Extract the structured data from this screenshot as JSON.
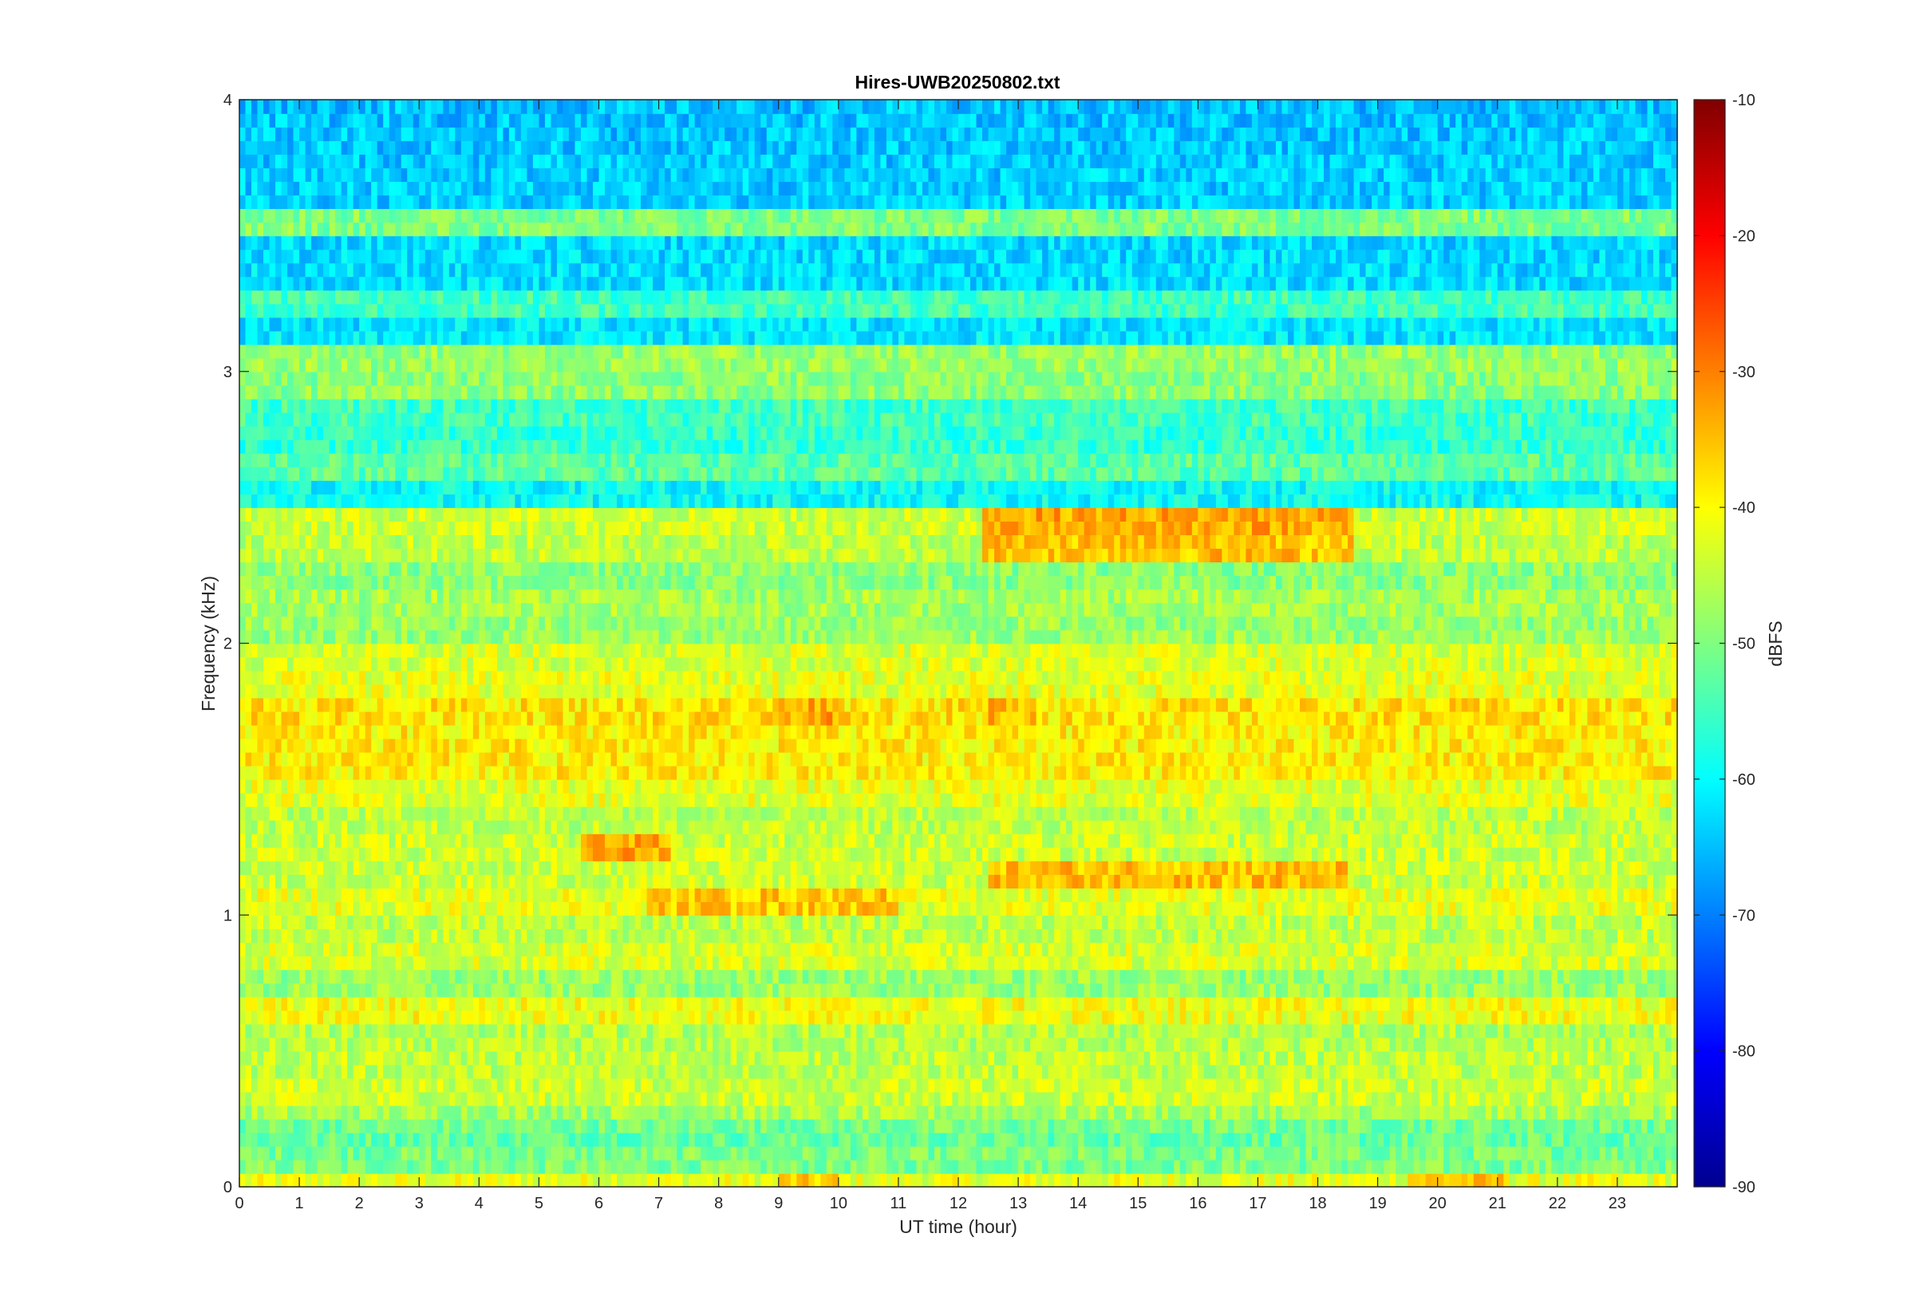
{
  "chart_data": {
    "type": "heatmap",
    "title": "Hires-UWB20250802.txt",
    "xlabel": "UT time (hour)",
    "ylabel": "Frequency (kHz)",
    "xlim": [
      0,
      24
    ],
    "ylim": [
      0,
      4
    ],
    "x_ticks": [
      "0",
      "1",
      "2",
      "3",
      "4",
      "5",
      "6",
      "7",
      "8",
      "9",
      "10",
      "11",
      "12",
      "13",
      "14",
      "15",
      "16",
      "17",
      "18",
      "19",
      "20",
      "21",
      "22",
      "23"
    ],
    "y_ticks": [
      "0",
      "1",
      "2",
      "3",
      "4"
    ],
    "colorbar": {
      "label": "dBFS",
      "limits": [
        -90,
        -10
      ],
      "ticks": [
        "-10",
        "-20",
        "-30",
        "-40",
        "-50",
        "-60",
        "-70",
        "-80",
        "-90"
      ],
      "colormap": "jet"
    },
    "grid": false,
    "background_level_low_freq_dbfs": -50,
    "background_level_high_freq_dbfs": -65,
    "bands": [
      {
        "freq_khz": 0.04,
        "level_dbfs": -42,
        "x_range": [
          0,
          24
        ]
      },
      {
        "freq_khz": 0.16,
        "level_dbfs": -52,
        "x_range": [
          0,
          24
        ]
      },
      {
        "freq_khz": 0.26,
        "level_dbfs": -47,
        "x_range": [
          0,
          24
        ]
      },
      {
        "freq_khz": 0.35,
        "level_dbfs": -44,
        "x_range": [
          0,
          24
        ]
      },
      {
        "freq_khz": 0.45,
        "level_dbfs": -45,
        "x_range": [
          0,
          24
        ]
      },
      {
        "freq_khz": 0.55,
        "level_dbfs": -46,
        "x_range": [
          0,
          24
        ]
      },
      {
        "freq_khz": 0.65,
        "level_dbfs": -41,
        "x_range": [
          0,
          24
        ]
      },
      {
        "freq_khz": 0.75,
        "level_dbfs": -48,
        "x_range": [
          0,
          24
        ]
      },
      {
        "freq_khz": 0.85,
        "level_dbfs": -43,
        "x_range": [
          0,
          24
        ]
      },
      {
        "freq_khz": 0.95,
        "level_dbfs": -45,
        "x_range": [
          0,
          24
        ]
      },
      {
        "freq_khz": 1.05,
        "level_dbfs": -42,
        "x_range": [
          0,
          24
        ]
      },
      {
        "freq_khz": 1.15,
        "level_dbfs": -44,
        "x_range": [
          0,
          24
        ]
      },
      {
        "freq_khz": 1.25,
        "level_dbfs": -44,
        "x_range": [
          0,
          24
        ]
      },
      {
        "freq_khz": 1.35,
        "level_dbfs": -45,
        "x_range": [
          0,
          24
        ]
      },
      {
        "freq_khz": 1.45,
        "level_dbfs": -42,
        "x_range": [
          0,
          24
        ]
      },
      {
        "freq_khz": 1.55,
        "level_dbfs": -39,
        "x_range": [
          0,
          24
        ]
      },
      {
        "freq_khz": 1.65,
        "level_dbfs": -39,
        "x_range": [
          0,
          24
        ]
      },
      {
        "freq_khz": 1.75,
        "level_dbfs": -38,
        "x_range": [
          0,
          24
        ]
      },
      {
        "freq_khz": 1.85,
        "level_dbfs": -42,
        "x_range": [
          0,
          24
        ]
      },
      {
        "freq_khz": 1.95,
        "level_dbfs": -43,
        "x_range": [
          0,
          24
        ]
      },
      {
        "freq_khz": 2.05,
        "level_dbfs": -48,
        "x_range": [
          0,
          24
        ]
      },
      {
        "freq_khz": 2.15,
        "level_dbfs": -47,
        "x_range": [
          0,
          24
        ]
      },
      {
        "freq_khz": 2.25,
        "level_dbfs": -49,
        "x_range": [
          0,
          24
        ]
      },
      {
        "freq_khz": 2.35,
        "level_dbfs": -45,
        "x_range": [
          0,
          24
        ]
      },
      {
        "freq_khz": 2.45,
        "level_dbfs": -44,
        "x_range": [
          0,
          24
        ]
      },
      {
        "freq_khz": 2.65,
        "level_dbfs": -53,
        "x_range": [
          0,
          24
        ]
      },
      {
        "freq_khz": 2.75,
        "level_dbfs": -56,
        "x_range": [
          0,
          24
        ]
      },
      {
        "freq_khz": 2.85,
        "level_dbfs": -55,
        "x_range": [
          0,
          24
        ]
      },
      {
        "freq_khz": 2.95,
        "level_dbfs": -49,
        "x_range": [
          0,
          24
        ]
      },
      {
        "freq_khz": 3.05,
        "level_dbfs": -48,
        "x_range": [
          0,
          24
        ]
      },
      {
        "freq_khz": 3.25,
        "level_dbfs": -55,
        "x_range": [
          0,
          24
        ]
      },
      {
        "freq_khz": 3.55,
        "level_dbfs": -50,
        "x_range": [
          0,
          24
        ]
      }
    ],
    "highlights": [
      {
        "freq_khz": 2.45,
        "level_dbfs": -33,
        "x_range": [
          12.4,
          18.6
        ]
      },
      {
        "freq_khz": 2.35,
        "level_dbfs": -35,
        "x_range": [
          12.4,
          18.6
        ]
      },
      {
        "freq_khz": 1.75,
        "level_dbfs": -33,
        "x_range": [
          9.0,
          10.0
        ]
      },
      {
        "freq_khz": 1.75,
        "level_dbfs": -34,
        "x_range": [
          12.5,
          13.3
        ]
      },
      {
        "freq_khz": 1.25,
        "level_dbfs": -33,
        "x_range": [
          5.7,
          7.2
        ]
      },
      {
        "freq_khz": 1.15,
        "level_dbfs": -35,
        "x_range": [
          12.5,
          18.5
        ]
      },
      {
        "freq_khz": 1.05,
        "level_dbfs": -36,
        "x_range": [
          6.8,
          11.0
        ]
      },
      {
        "freq_khz": 0.04,
        "level_dbfs": -36,
        "x_range": [
          19.5,
          21.2
        ]
      },
      {
        "freq_khz": 0.04,
        "level_dbfs": -37,
        "x_range": [
          9.0,
          10.0
        ]
      }
    ]
  }
}
